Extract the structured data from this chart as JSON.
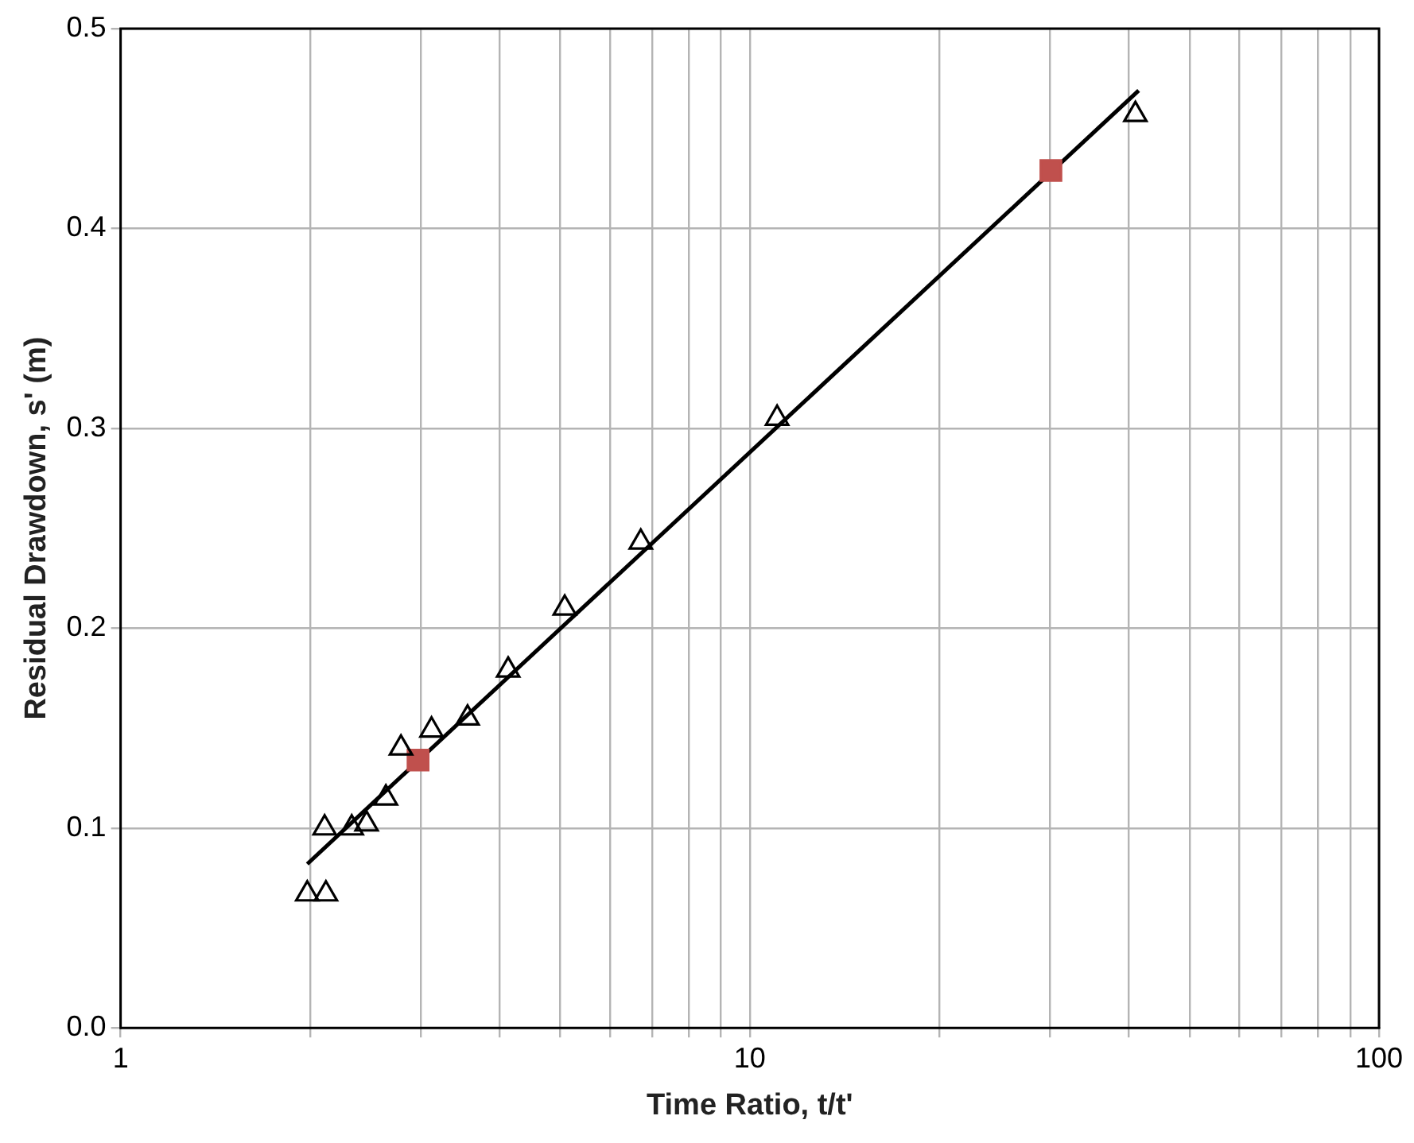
{
  "chart_data": {
    "type": "scatter",
    "xlabel": "Time Ratio, t/t'",
    "ylabel": "Residual Drawdown, s' (m)",
    "log": "x",
    "grid": true,
    "legend": false,
    "xlim": [
      1,
      100
    ],
    "xticks": [
      1,
      {
        "value": 2,
        "label": null
      },
      {
        "value": 3,
        "label": null
      },
      {
        "value": 4,
        "label": null
      },
      {
        "value": 5,
        "label": null
      },
      {
        "value": 6,
        "label": null
      },
      {
        "value": 7,
        "label": null
      },
      {
        "value": 8,
        "label": null
      },
      {
        "value": 9,
        "label": null
      },
      10,
      {
        "value": 20,
        "label": null
      },
      {
        "value": 30,
        "label": null
      },
      {
        "value": 40,
        "label": null
      },
      {
        "value": 50,
        "label": null
      },
      {
        "value": 60,
        "label": null
      },
      {
        "value": 70,
        "label": null
      },
      {
        "value": 80,
        "label": null
      },
      {
        "value": 90,
        "label": null
      },
      100
    ],
    "ylim": [
      0,
      0.5
    ],
    "yticks": [
      {
        "value": 0,
        "label": "0.0"
      },
      0.1,
      0.2,
      0.3,
      0.4,
      0.5
    ],
    "series": [
      {
        "marker": "triangle",
        "color": "#000000",
        "x": [
          1.98,
          2.12,
          2.11,
          2.33,
          2.46,
          2.64,
          2.79,
          3.12,
          3.56,
          4.13,
          5.08,
          6.71,
          11.05,
          41
        ],
        "values": [
          0.067,
          0.067,
          0.1,
          0.1,
          0.102,
          0.115,
          0.14,
          0.149,
          0.155,
          0.179,
          0.21,
          0.243,
          0.305,
          0.457
        ]
      },
      {
        "marker": "square",
        "color": "#c0504d",
        "x": [
          2.97,
          30.1
        ],
        "values": [
          0.134,
          0.429
        ]
      },
      {
        "type": "line",
        "marker": "none",
        "line_style": "solid",
        "color": "#000000",
        "x": [
          1.98,
          41.5
        ],
        "values": [
          0.082,
          0.469
        ]
      }
    ]
  }
}
